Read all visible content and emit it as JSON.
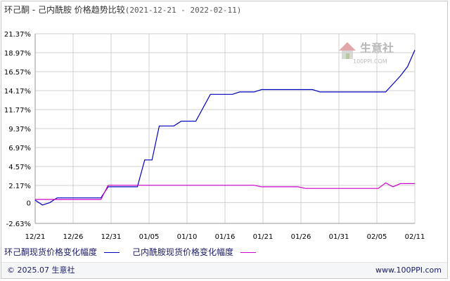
{
  "title": {
    "main": "环己酮 - 己内酰胺 价格趋势比较",
    "range": "(2021-12-21 - 2022-02-11)"
  },
  "watermark": {
    "brand": "生意社",
    "url": "100PPI.COM"
  },
  "footer": {
    "copyright": "© 2025.07 生意社",
    "site": "www.100PPI.com"
  },
  "colors": {
    "series_1": "#0000c0",
    "series_2": "#cc00cc",
    "grid": "#d0d0d0"
  },
  "chart_data": {
    "type": "line",
    "title": "环己酮 - 己内酰胺 价格趋势比较",
    "subtitle": "(2021-12-21 - 2022-02-11)",
    "xlabel": "",
    "ylabel": "",
    "x_ticks": [
      "12/21",
      "12/26",
      "12/31",
      "01/05",
      "01/10",
      "01/16",
      "01/21",
      "01/26",
      "01/31",
      "02/05",
      "02/11"
    ],
    "y_ticks": [
      "21.37%",
      "18.97%",
      "16.57%",
      "14.17%",
      "11.77%",
      "9.37%",
      "6.97%",
      "4.57%",
      "2.17%",
      "0",
      "-2.63%"
    ],
    "ylim": [
      -2.63,
      21.37
    ],
    "xlim": [
      "2021-12-21",
      "2022-02-11"
    ],
    "grid": true,
    "legend_position": "bottom",
    "series": [
      {
        "name": "环己酮现货价格变化幅度",
        "points": [
          [
            "2021-12-21",
            0.3
          ],
          [
            "2021-12-22",
            -0.3
          ],
          [
            "2021-12-23",
            0.0
          ],
          [
            "2021-12-24",
            0.6
          ],
          [
            "2021-12-30",
            0.6
          ],
          [
            "2021-12-31",
            2.0
          ],
          [
            "2022-01-04",
            2.0
          ],
          [
            "2022-01-05",
            5.4
          ],
          [
            "2022-01-06",
            5.4
          ],
          [
            "2022-01-07",
            9.7
          ],
          [
            "2022-01-09",
            9.7
          ],
          [
            "2022-01-10",
            10.3
          ],
          [
            "2022-01-12",
            10.3
          ],
          [
            "2022-01-14",
            13.7
          ],
          [
            "2022-01-17",
            13.7
          ],
          [
            "2022-01-18",
            14.0
          ],
          [
            "2022-01-20",
            14.0
          ],
          [
            "2022-01-21",
            14.3
          ],
          [
            "2022-01-28",
            14.3
          ],
          [
            "2022-01-29",
            14.0
          ],
          [
            "2022-02-07",
            14.0
          ],
          [
            "2022-02-09",
            16.0
          ],
          [
            "2022-02-10",
            17.2
          ],
          [
            "2022-02-11",
            19.3
          ]
        ]
      },
      {
        "name": "己内酰胺现货价格变化幅度",
        "points": [
          [
            "2021-12-21",
            0.4
          ],
          [
            "2021-12-30",
            0.4
          ],
          [
            "2021-12-31",
            2.2
          ],
          [
            "2022-01-20",
            2.2
          ],
          [
            "2022-01-21",
            2.0
          ],
          [
            "2022-01-26",
            2.0
          ],
          [
            "2022-01-27",
            1.8
          ],
          [
            "2022-02-06",
            1.8
          ],
          [
            "2022-02-07",
            2.5
          ],
          [
            "2022-02-08",
            2.0
          ],
          [
            "2022-02-09",
            2.4
          ],
          [
            "2022-02-11",
            2.4
          ]
        ]
      }
    ]
  }
}
